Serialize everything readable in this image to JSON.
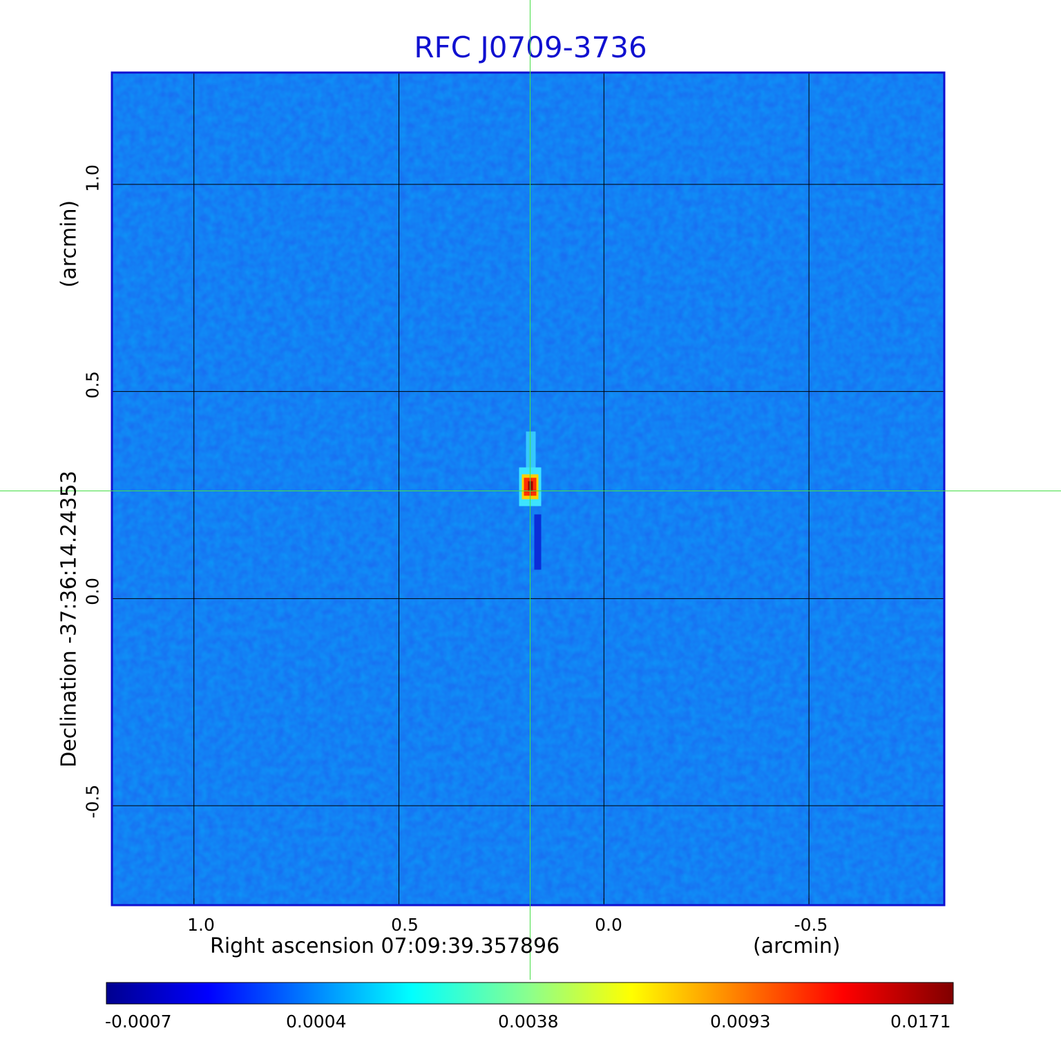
{
  "chart_data": {
    "type": "heatmap",
    "title": "RFC J0709-3736",
    "xlabel": "Right ascension  07:09:39.357896",
    "xunit": "(arcmin)",
    "ylabel": "Declination  -37:36:14.24353",
    "yunit": "(arcmin)",
    "x_ticks": [
      "1.0",
      "0.5",
      "0.0",
      "-0.5"
    ],
    "y_ticks": [
      "1.0",
      "0.5",
      "0.0",
      "-0.5"
    ],
    "xlim": [
      1.2,
      -0.83
    ],
    "ylim": [
      -0.74,
      1.27
    ],
    "grid": true,
    "colormap": "jet",
    "colorbar_ticks": [
      "-0.0007",
      "0.0004",
      "0.0038",
      "0.0093",
      "0.0171"
    ],
    "peak": {
      "x": 0.18,
      "y": 0.27,
      "value": 0.0171
    },
    "crosshair": {
      "x": 0.18,
      "y": 0.26
    },
    "colors": {
      "title": "#1010d0",
      "frame": "#1010d0",
      "crosshair": "#44dd44",
      "grid": "#000000"
    }
  }
}
